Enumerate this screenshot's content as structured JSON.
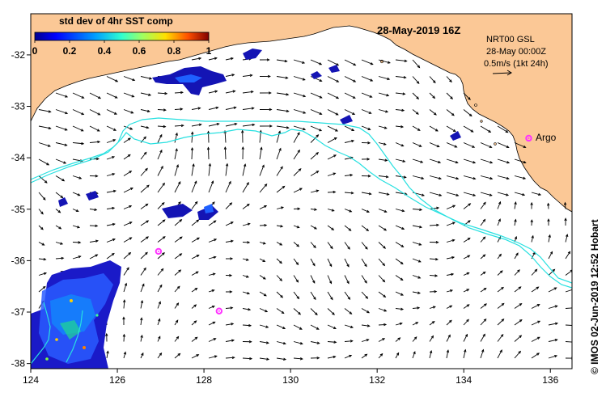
{
  "chart_data": {
    "type": "map",
    "title": "28-May-2019 16Z",
    "product": "NRT00 GSL",
    "product_time": "28-May 00:00Z",
    "scale_label": "0.5m/s (1kt 24h)",
    "colorbar": {
      "title": "std dev of 4hr SST comp",
      "ticks": [
        "0",
        "0.2",
        "0.4",
        "0.6",
        "0.8",
        "1"
      ],
      "range": [
        0,
        1
      ]
    },
    "x_ticks": [
      "124",
      "126",
      "128",
      "130",
      "132",
      "134",
      "136"
    ],
    "y_ticks": [
      "-32",
      "-33",
      "-34",
      "-35",
      "-36",
      "-37",
      "-38"
    ],
    "lon_range": [
      124,
      136.5
    ],
    "lat_range": [
      -38.1,
      -31.2
    ],
    "argo_label": "Argo",
    "argo_floats": [
      {
        "lon": 135.5,
        "lat": -33.62
      },
      {
        "lon": 126.95,
        "lat": -35.82
      },
      {
        "lon": 128.35,
        "lat": -36.98
      }
    ],
    "credit": "© IMOS 02-Jun-2019 12:52 Hobart",
    "colors": {
      "land": "#fbc896",
      "contour": "#27e0e0",
      "argo": "#ff33ff"
    }
  }
}
